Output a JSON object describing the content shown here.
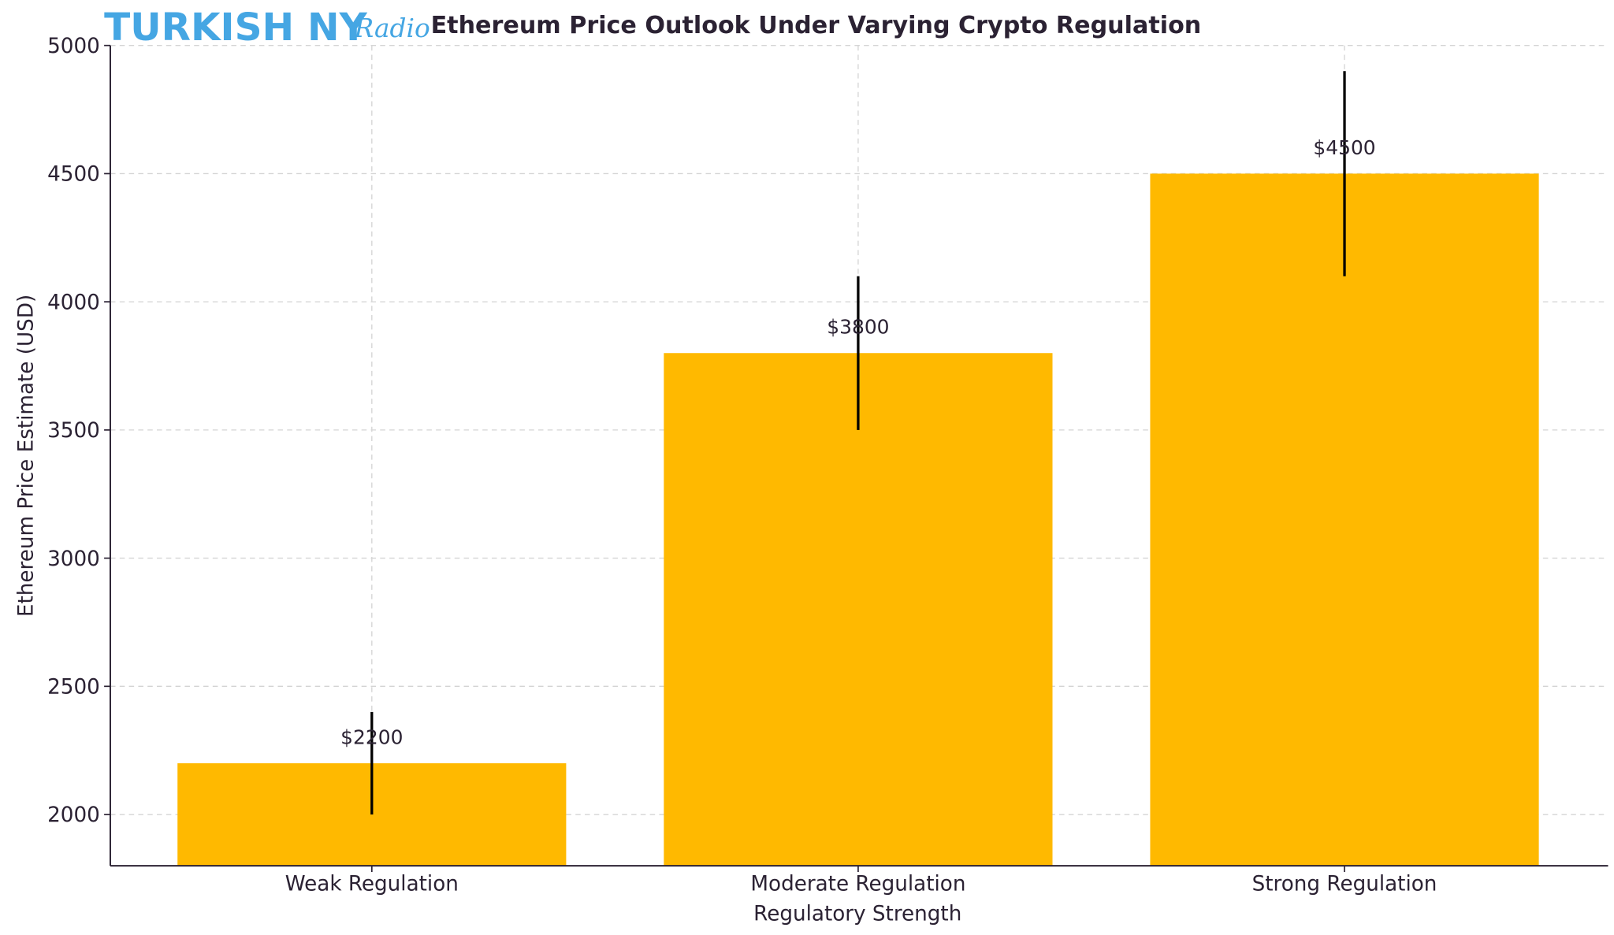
{
  "branding": {
    "logo_main": "TURKISH NY",
    "logo_script": "Radio",
    "logo_color": "#45a6e3"
  },
  "chart_data": {
    "type": "bar",
    "title": "Ethereum Price Outlook Under Varying Crypto Regulation",
    "xlabel": "Regulatory Strength",
    "ylabel": "Ethereum Price Estimate (USD)",
    "categories": [
      "Weak Regulation",
      "Moderate Regulation",
      "Strong Regulation"
    ],
    "values": [
      2200,
      3800,
      4500
    ],
    "errors": [
      200,
      300,
      400
    ],
    "data_labels": [
      "$2200",
      "$3800",
      "$4500"
    ],
    "ylim": [
      1800,
      5000
    ],
    "yticks": [
      2000,
      2500,
      3000,
      3500,
      4000,
      4500,
      5000
    ],
    "grid": true,
    "bar_color": "#ffb900",
    "error_color": "#000000"
  }
}
